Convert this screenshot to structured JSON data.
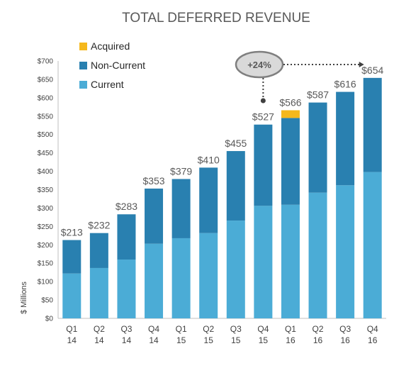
{
  "chart_data": {
    "type": "bar",
    "stacked": true,
    "title": "TOTAL DEFERRED REVENUE",
    "ylabel": "$ Millions",
    "xlabel": "",
    "ylim": [
      0,
      700
    ],
    "yticks": [
      "$0",
      "$50",
      "$100",
      "$150",
      "$200",
      "$250",
      "$300",
      "$350",
      "$400",
      "$450",
      "$500",
      "$550",
      "$600",
      "$650",
      "$700"
    ],
    "categories": [
      [
        "Q1",
        "14"
      ],
      [
        "Q2",
        "14"
      ],
      [
        "Q3",
        "14"
      ],
      [
        "Q4",
        "14"
      ],
      [
        "Q1",
        "15"
      ],
      [
        "Q2",
        "15"
      ],
      [
        "Q3",
        "15"
      ],
      [
        "Q4",
        "15"
      ],
      [
        "Q1",
        "16"
      ],
      [
        "Q2",
        "16"
      ],
      [
        "Q3",
        "16"
      ],
      [
        "Q4",
        "16"
      ]
    ],
    "series": [
      {
        "name": "Current",
        "color": "#4bacd6",
        "values": [
          122,
          137,
          160,
          203,
          218,
          232,
          266,
          306,
          309,
          342,
          362,
          398
        ]
      },
      {
        "name": "Non-Current",
        "color": "#2980b0",
        "values": [
          91,
          95,
          123,
          150,
          161,
          178,
          189,
          221,
          236,
          245,
          254,
          256
        ]
      },
      {
        "name": "Acquired",
        "color": "#f5b81c",
        "values": [
          0,
          0,
          0,
          0,
          0,
          0,
          0,
          0,
          21,
          0,
          0,
          0
        ]
      }
    ],
    "totals": [
      "$213",
      "$232",
      "$283",
      "$353",
      "$379",
      "$410",
      "$455",
      "$527",
      "$566",
      "$587",
      "$616",
      "$654"
    ],
    "legend_order": [
      "Acquired",
      "Non-Current",
      "Current"
    ],
    "legend_position": "top-left",
    "annotation": {
      "text": "+24%",
      "from_category": 7,
      "to_category": 11
    }
  }
}
